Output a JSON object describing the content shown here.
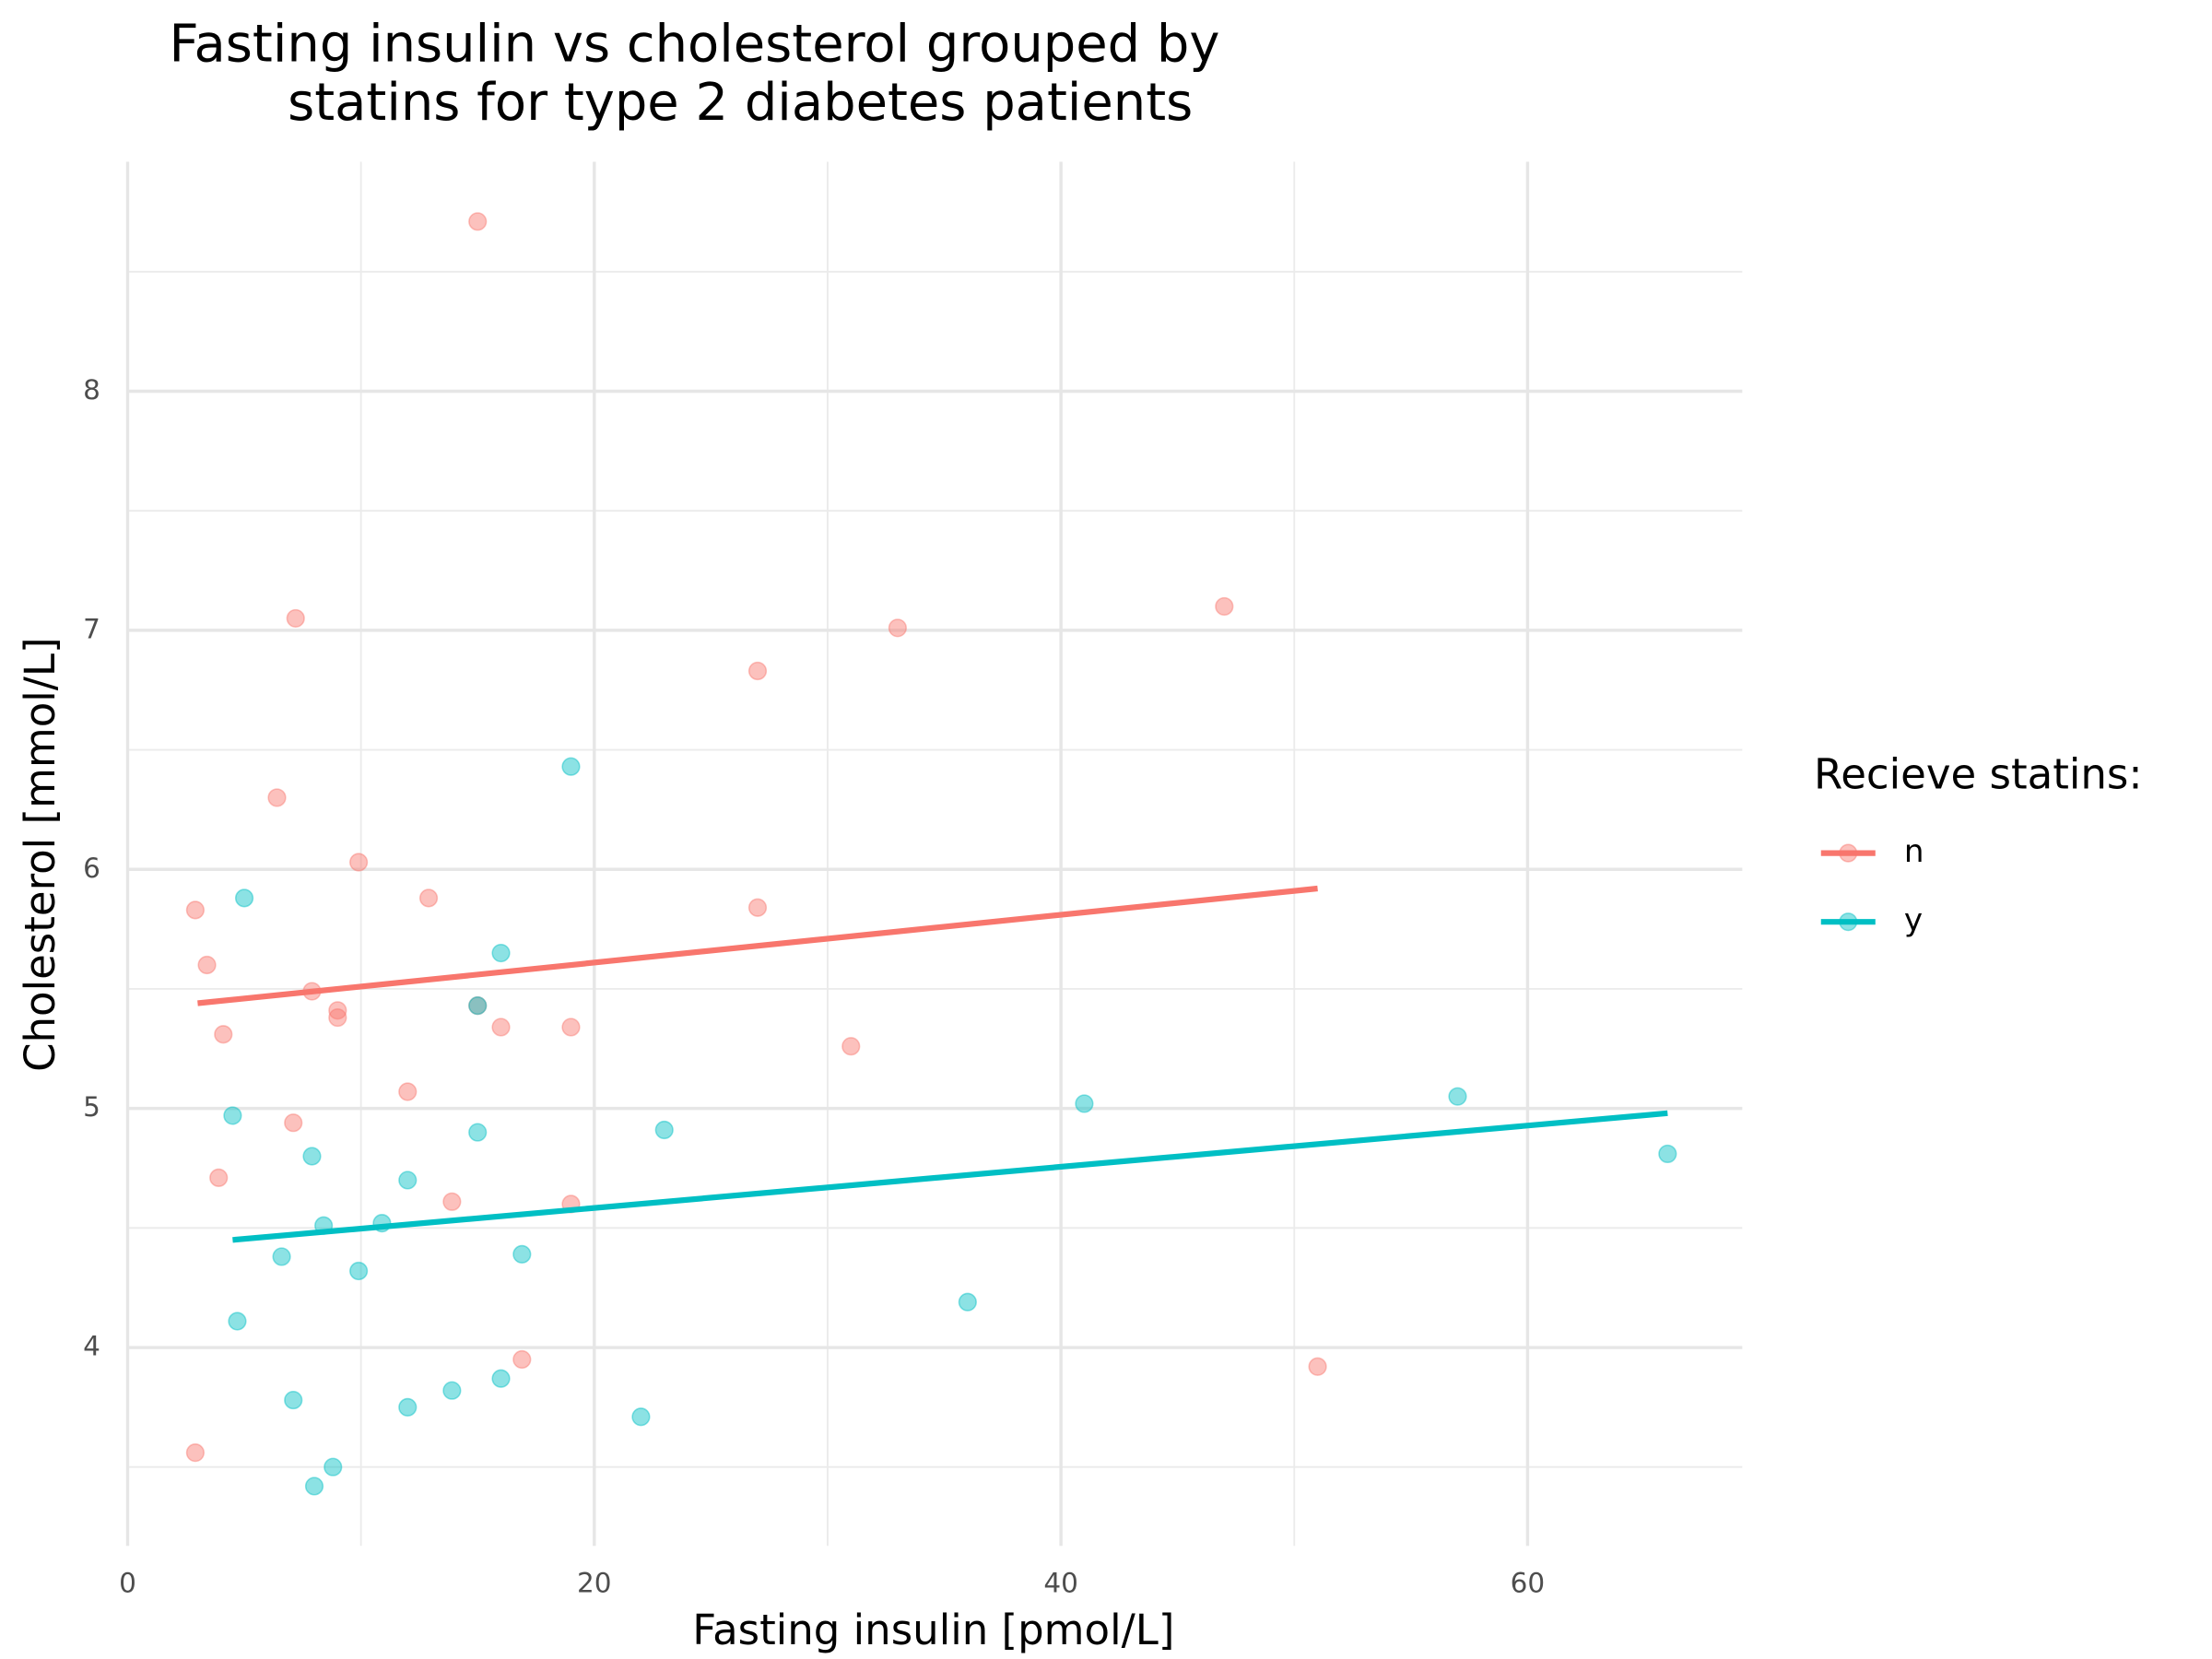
{
  "chart_data": {
    "type": "scatter",
    "title": [
      "Fasting insulin vs cholesterol grouped by",
      "statins for type 2 diabetes patients"
    ],
    "x_label": "Fasting insulin [pmol/L]",
    "y_label": "Cholesterol [mmol/L]",
    "legend_title": "Recieve statins:",
    "legend_position": "right",
    "grid": true,
    "xlim": [
      0,
      69.2
    ],
    "ylim": [
      3.17,
      8.96
    ],
    "xticks": [
      0,
      20,
      40,
      60
    ],
    "yticks": [
      4,
      5,
      6,
      7,
      8
    ],
    "x_minor_ticks": [
      10,
      30,
      50
    ],
    "y_minor_ticks": [
      3.5,
      4.5,
      5.5,
      6.5,
      7.5,
      8.5
    ],
    "series": [
      {
        "name": "n",
        "color": "#F8766D",
        "x": [
          15,
          7.2,
          33,
          47,
          27,
          6.4,
          9.9,
          2.9,
          12.9,
          27,
          3.4,
          7.9,
          9,
          9,
          4.1,
          15,
          16,
          19,
          31,
          12,
          7.1,
          3.9,
          13.9,
          19,
          16.9,
          51,
          2.9
        ],
        "values": [
          8.71,
          7.05,
          7.01,
          7.1,
          6.83,
          6.3,
          6.03,
          5.83,
          5.88,
          5.84,
          5.6,
          5.49,
          5.41,
          5.38,
          5.31,
          5.43,
          5.34,
          5.34,
          5.26,
          5.07,
          4.94,
          4.71,
          4.61,
          4.6,
          3.95,
          3.92,
          3.56
        ],
        "trend": {
          "x": [
            3,
            51
          ],
          "values": [
            5.44,
            5.92
          ]
        }
      },
      {
        "name": "y",
        "color": "#00BFC4",
        "x": [
          19,
          5,
          16,
          15,
          4.5,
          41,
          57,
          23,
          15,
          7.9,
          66,
          12,
          8.4,
          10.9,
          6.6,
          16.9,
          9.9,
          36,
          4.7,
          7.1,
          13.9,
          16,
          12,
          22,
          8.8,
          8
        ],
        "values": [
          6.43,
          5.88,
          5.65,
          5.43,
          4.97,
          5.02,
          5.05,
          4.91,
          4.9,
          4.8,
          4.81,
          4.7,
          4.51,
          4.52,
          4.38,
          4.39,
          4.32,
          4.19,
          4.11,
          3.78,
          3.82,
          3.87,
          3.75,
          3.71,
          3.5,
          3.42
        ],
        "trend": {
          "x": [
            4.5,
            66
          ],
          "values": [
            4.45,
            4.98
          ]
        }
      }
    ]
  }
}
